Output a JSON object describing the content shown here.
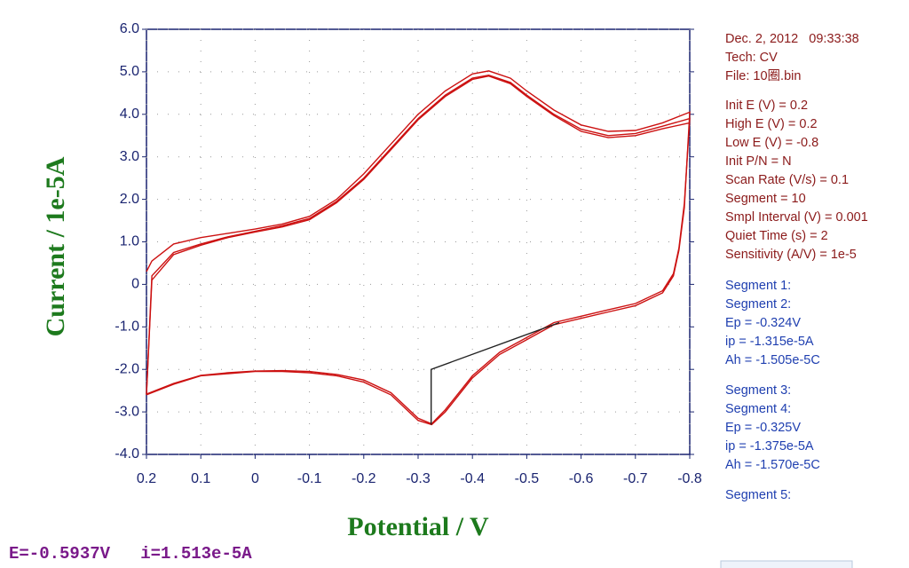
{
  "chart_data": {
    "type": "line",
    "y_label": "Current / 1e-5A",
    "x_label": "Potential / V",
    "xlim": [
      0.2,
      -0.8
    ],
    "xticks": [
      0.2,
      0.1,
      0,
      -0.1,
      -0.2,
      -0.3,
      -0.4,
      -0.5,
      -0.6,
      -0.7,
      -0.8
    ],
    "ylim": [
      -4,
      6
    ],
    "yticks": [
      {
        "value": -4,
        "label": "-4.0"
      },
      {
        "value": -3,
        "label": "-3.0"
      },
      {
        "value": -2,
        "label": "-2.0"
      },
      {
        "value": -1,
        "label": "-1.0"
      },
      0,
      {
        "value": 1,
        "label": "1.0"
      },
      {
        "value": 2,
        "label": "2.0"
      },
      {
        "value": 3,
        "label": "3.0"
      },
      {
        "value": 4,
        "label": "4.0"
      },
      {
        "value": 5,
        "label": "5.0"
      },
      {
        "value": 6,
        "label": "6.0"
      }
    ],
    "grid": true,
    "series": [
      {
        "color": "#cc1111",
        "x": [
          0.2,
          0.19,
          0.15,
          0.1,
          0.05,
          0,
          -0.05,
          -0.1,
          -0.15,
          -0.2,
          -0.25,
          -0.3,
          -0.35,
          -0.4,
          -0.43,
          -0.47,
          -0.5,
          -0.55,
          -0.6,
          -0.65,
          -0.7,
          -0.75,
          -0.8,
          -0.79,
          -0.78,
          -0.77,
          -0.75,
          -0.7,
          -0.65,
          -0.6,
          -0.55,
          -0.5,
          -0.45,
          -0.4,
          -0.35,
          -0.325,
          -0.3,
          -0.25,
          -0.2,
          -0.15,
          -0.1,
          -0.05,
          0,
          0.05,
          0.1,
          0.15,
          0.2
        ],
        "values": [
          0.3,
          0.55,
          0.95,
          1.1,
          1.2,
          1.3,
          1.42,
          1.6,
          2.0,
          2.6,
          3.3,
          4.0,
          4.55,
          4.95,
          5.02,
          4.85,
          4.55,
          4.1,
          3.75,
          3.6,
          3.62,
          3.8,
          4.05,
          1.8,
          0.8,
          0.2,
          -0.2,
          -0.5,
          -0.65,
          -0.8,
          -0.95,
          -1.3,
          -1.65,
          -2.2,
          -3.0,
          -3.3,
          -3.2,
          -2.6,
          -2.3,
          -2.15,
          -2.08,
          -2.05,
          -2.05,
          -2.1,
          -2.15,
          -2.35,
          -2.6
        ]
      },
      {
        "color": "#cc1111",
        "x": [
          0.2,
          0.19,
          0.15,
          0.1,
          0.05,
          0,
          -0.05,
          -0.1,
          -0.15,
          -0.2,
          -0.25,
          -0.3,
          -0.35,
          -0.4,
          -0.43,
          -0.47,
          -0.5,
          -0.55,
          -0.6,
          -0.65,
          -0.7,
          -0.75,
          -0.8,
          -0.79,
          -0.78,
          -0.77,
          -0.75,
          -0.7,
          -0.65,
          -0.6,
          -0.55,
          -0.5,
          -0.45,
          -0.4,
          -0.35,
          -0.325,
          -0.3,
          -0.25,
          -0.2,
          -0.15,
          -0.1,
          -0.05,
          0,
          0.05,
          0.1,
          0.15,
          0.2
        ],
        "values": [
          -2.6,
          0.2,
          0.75,
          0.95,
          1.12,
          1.25,
          1.38,
          1.55,
          1.95,
          2.5,
          3.2,
          3.9,
          4.45,
          4.85,
          4.92,
          4.75,
          4.45,
          4.0,
          3.65,
          3.5,
          3.55,
          3.72,
          3.9,
          1.9,
          0.85,
          0.25,
          -0.15,
          -0.45,
          -0.6,
          -0.75,
          -0.9,
          -1.25,
          -1.6,
          -2.15,
          -2.95,
          -3.28,
          -3.15,
          -2.55,
          -2.25,
          -2.12,
          -2.05,
          -2.03,
          -2.04,
          -2.08,
          -2.14,
          -2.33,
          -2.58
        ]
      },
      {
        "color": "#cc1111",
        "x": [
          0.2,
          0.19,
          0.15,
          0.1,
          0.05,
          0,
          -0.05,
          -0.1,
          -0.15,
          -0.2,
          -0.25,
          -0.3,
          -0.35,
          -0.4,
          -0.43,
          -0.47,
          -0.5,
          -0.55,
          -0.6,
          -0.65,
          -0.7,
          -0.75,
          -0.8
        ],
        "values": [
          -2.58,
          0.1,
          0.7,
          0.92,
          1.1,
          1.23,
          1.35,
          1.52,
          1.92,
          2.47,
          3.17,
          3.87,
          4.42,
          4.82,
          4.9,
          4.72,
          4.42,
          3.97,
          3.6,
          3.45,
          3.5,
          3.66,
          3.8
        ]
      },
      {
        "color": "#222222",
        "x": [
          -0.324,
          -0.324,
          -0.56
        ],
        "values": [
          -3.3,
          -2.0,
          -0.9
        ]
      }
    ],
    "info_header": [
      "Dec. 2, 2012   09:33:38",
      "Tech: CV",
      "File: 10圈.bin"
    ],
    "parameters": [
      "Init E (V) = 0.2",
      "High E (V) = 0.2",
      "Low E (V) = -0.8",
      "Init P/N = N",
      "Scan Rate (V/s) = 0.1",
      "Segment = 10",
      "Smpl Interval (V) = 0.001",
      "Quiet Time (s) = 2",
      "Sensitivity (A/V) = 1e-5"
    ],
    "results": [
      [
        "Segment 1:",
        "Segment 2:",
        "Ep = -0.324V",
        "ip = -1.315e-5A",
        "Ah = -1.505e-5C"
      ],
      [
        "Segment 3:",
        "Segment 4:",
        "Ep = -0.325V",
        "ip = -1.375e-5A",
        "Ah = -1.570e-5C"
      ],
      [
        "Segment 5:"
      ]
    ],
    "status": "E=-0.5937V   i=1.513e-5A"
  }
}
